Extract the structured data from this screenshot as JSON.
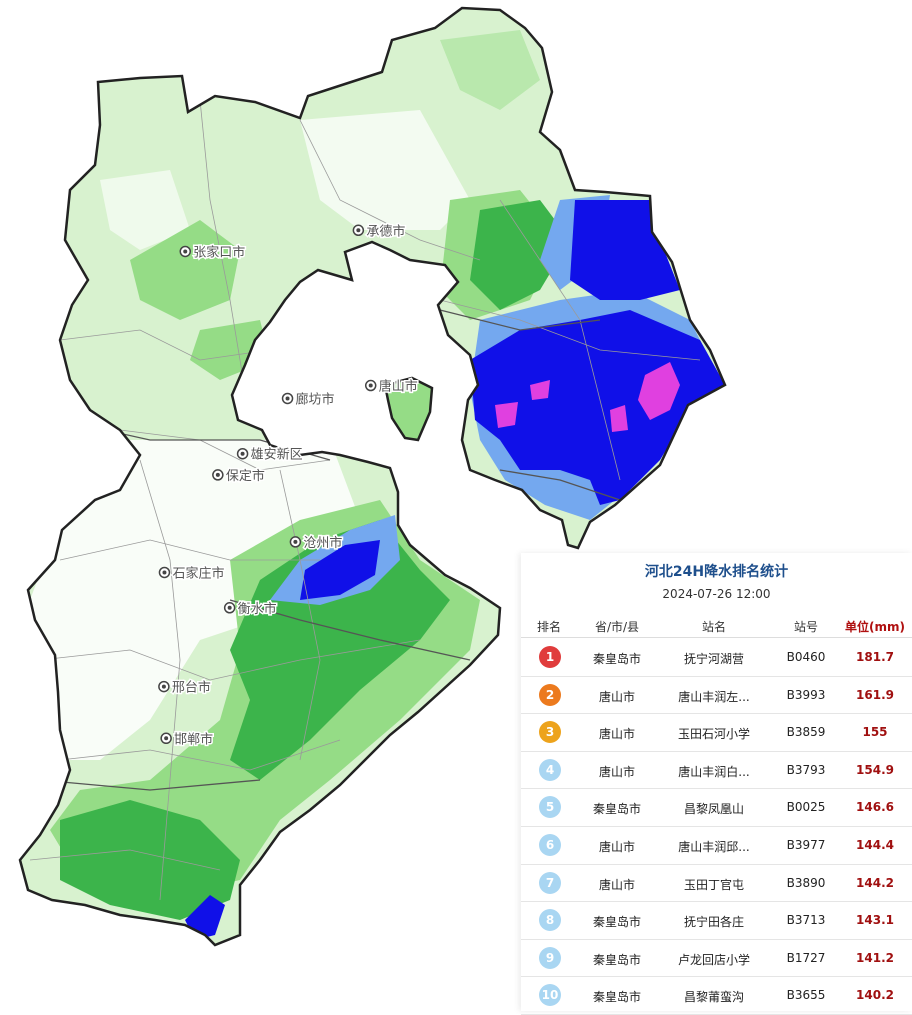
{
  "map": {
    "cities": [
      {
        "name": "张家口市",
        "lon": 114.88,
        "lat": 40.77
      },
      {
        "name": "承德市",
        "lon": 117.96,
        "lat": 40.95
      },
      {
        "name": "唐山市",
        "lon": 118.18,
        "lat": 39.63
      },
      {
        "name": "廊坊市",
        "lon": 116.7,
        "lat": 39.52
      },
      {
        "name": "雄安新区",
        "lon": 115.9,
        "lat": 39.05
      },
      {
        "name": "保定市",
        "lon": 115.46,
        "lat": 38.87
      },
      {
        "name": "石家庄市",
        "lon": 114.51,
        "lat": 38.04
      },
      {
        "name": "沧州市",
        "lon": 116.84,
        "lat": 38.3
      },
      {
        "name": "衡水市",
        "lon": 115.67,
        "lat": 37.74
      },
      {
        "name": "邢台市",
        "lon": 114.5,
        "lat": 37.07
      },
      {
        "name": "邯郸市",
        "lon": 114.54,
        "lat": 36.63
      }
    ],
    "colors": {
      "light_green": "#d8f2cf",
      "mid_green": "#95dc86",
      "green": "#3cb44b",
      "light_blue": "#74a8ef",
      "blue": "#1010e8",
      "magenta": "#e040e0",
      "border": "#222222"
    }
  },
  "panel": {
    "title": "河北24H降水排名统计",
    "date": "2024-07-26 12:00",
    "headers": {
      "rank": "排名",
      "city": "省/市/县",
      "name": "站名",
      "id": "站号",
      "value": "单位(mm)"
    },
    "rows": [
      {
        "rank": "1",
        "city": "秦皇岛市",
        "name": "抚宁河湖营",
        "id": "B0460",
        "value": "181.7",
        "color": "#e03c3c"
      },
      {
        "rank": "2",
        "city": "唐山市",
        "name": "唐山丰润左...",
        "id": "B3993",
        "value": "161.9",
        "color": "#ec7a1e"
      },
      {
        "rank": "3",
        "city": "唐山市",
        "name": "玉田石河小学",
        "id": "B3859",
        "value": "155",
        "color": "#eda31c"
      },
      {
        "rank": "4",
        "city": "唐山市",
        "name": "唐山丰润白...",
        "id": "B3793",
        "value": "154.9",
        "color": "#a9d6f2"
      },
      {
        "rank": "5",
        "city": "秦皇岛市",
        "name": "昌黎凤凰山",
        "id": "B0025",
        "value": "146.6",
        "color": "#a9d6f2"
      },
      {
        "rank": "6",
        "city": "唐山市",
        "name": "唐山丰润邱...",
        "id": "B3977",
        "value": "144.4",
        "color": "#a9d6f2"
      },
      {
        "rank": "7",
        "city": "唐山市",
        "name": "玉田丁官屯",
        "id": "B3890",
        "value": "144.2",
        "color": "#a9d6f2"
      },
      {
        "rank": "8",
        "city": "秦皇岛市",
        "name": "抚宁田各庄",
        "id": "B3713",
        "value": "143.1",
        "color": "#a9d6f2"
      },
      {
        "rank": "9",
        "city": "秦皇岛市",
        "name": "卢龙回店小学",
        "id": "B1727",
        "value": "141.2",
        "color": "#a9d6f2"
      },
      {
        "rank": "10",
        "city": "秦皇岛市",
        "name": "昌黎莆蛮沟",
        "id": "B3655",
        "value": "140.2",
        "color": "#a9d6f2"
      }
    ]
  }
}
